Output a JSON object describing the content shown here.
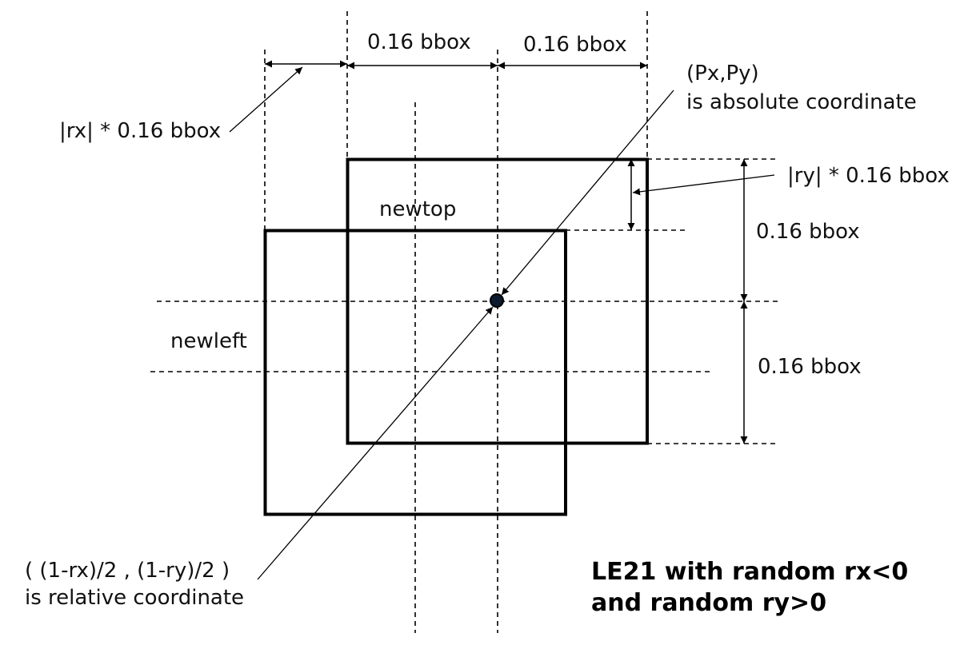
{
  "labels": {
    "bbox_width_left": "0.16 bbox",
    "bbox_width_right": "0.16 bbox",
    "bbox_height_top": "0.16 bbox",
    "bbox_height_bottom": "0.16 bbox",
    "rx_offset": "|rx| * 0.16 bbox",
    "ry_offset": "|ry| * 0.16 bbox",
    "abs_coord_line1": "(Px,Py)",
    "abs_coord_line2": "is absolute coordinate",
    "rel_coord_line1": "( (1-rx)/2 , (1-ry)/2 )",
    "rel_coord_line2": "is relative coordinate",
    "newtop": "newtop",
    "newleft": "newleft"
  },
  "caption": {
    "line1": "LE21 with random rx<0",
    "line2": "and random ry>0"
  },
  "colors": {
    "line": "#000000",
    "center_point_fill": "#0b1a2e"
  }
}
